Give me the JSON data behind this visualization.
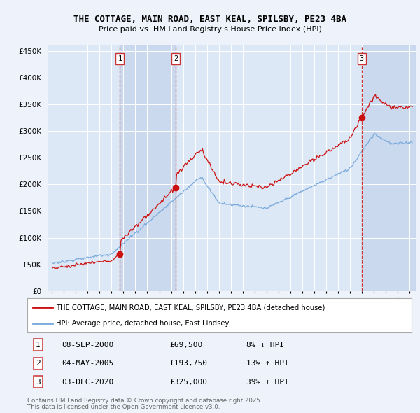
{
  "title_line1": "THE COTTAGE, MAIN ROAD, EAST KEAL, SPILSBY, PE23 4BA",
  "title_line2": "Price paid vs. HM Land Registry's House Price Index (HPI)",
  "background_color": "#eef2fa",
  "plot_bg_color": "#dce8f5",
  "shade_color": "#c8d8ee",
  "legend_line1": "THE COTTAGE, MAIN ROAD, EAST KEAL, SPILSBY, PE23 4BA (detached house)",
  "legend_line2": "HPI: Average price, detached house, East Lindsey",
  "sale1_date": "08-SEP-2000",
  "sale1_price": 69500,
  "sale1_label": "8% ↓ HPI",
  "sale2_date": "04-MAY-2005",
  "sale2_price": 193750,
  "sale2_label": "13% ↑ HPI",
  "sale3_date": "03-DEC-2020",
  "sale3_price": 325000,
  "sale3_label": "39% ↑ HPI",
  "footer_line1": "Contains HM Land Registry data © Crown copyright and database right 2025.",
  "footer_line2": "This data is licensed under the Open Government Licence v3.0.",
  "hpi_color": "#7aaadd",
  "price_color": "#cc1111",
  "sale_marker_color": "#cc1111",
  "vline_color": "#cc3333",
  "ylim_max": 460000,
  "ylim_min": 0,
  "xlim_min": 1994.7,
  "xlim_max": 2025.5
}
